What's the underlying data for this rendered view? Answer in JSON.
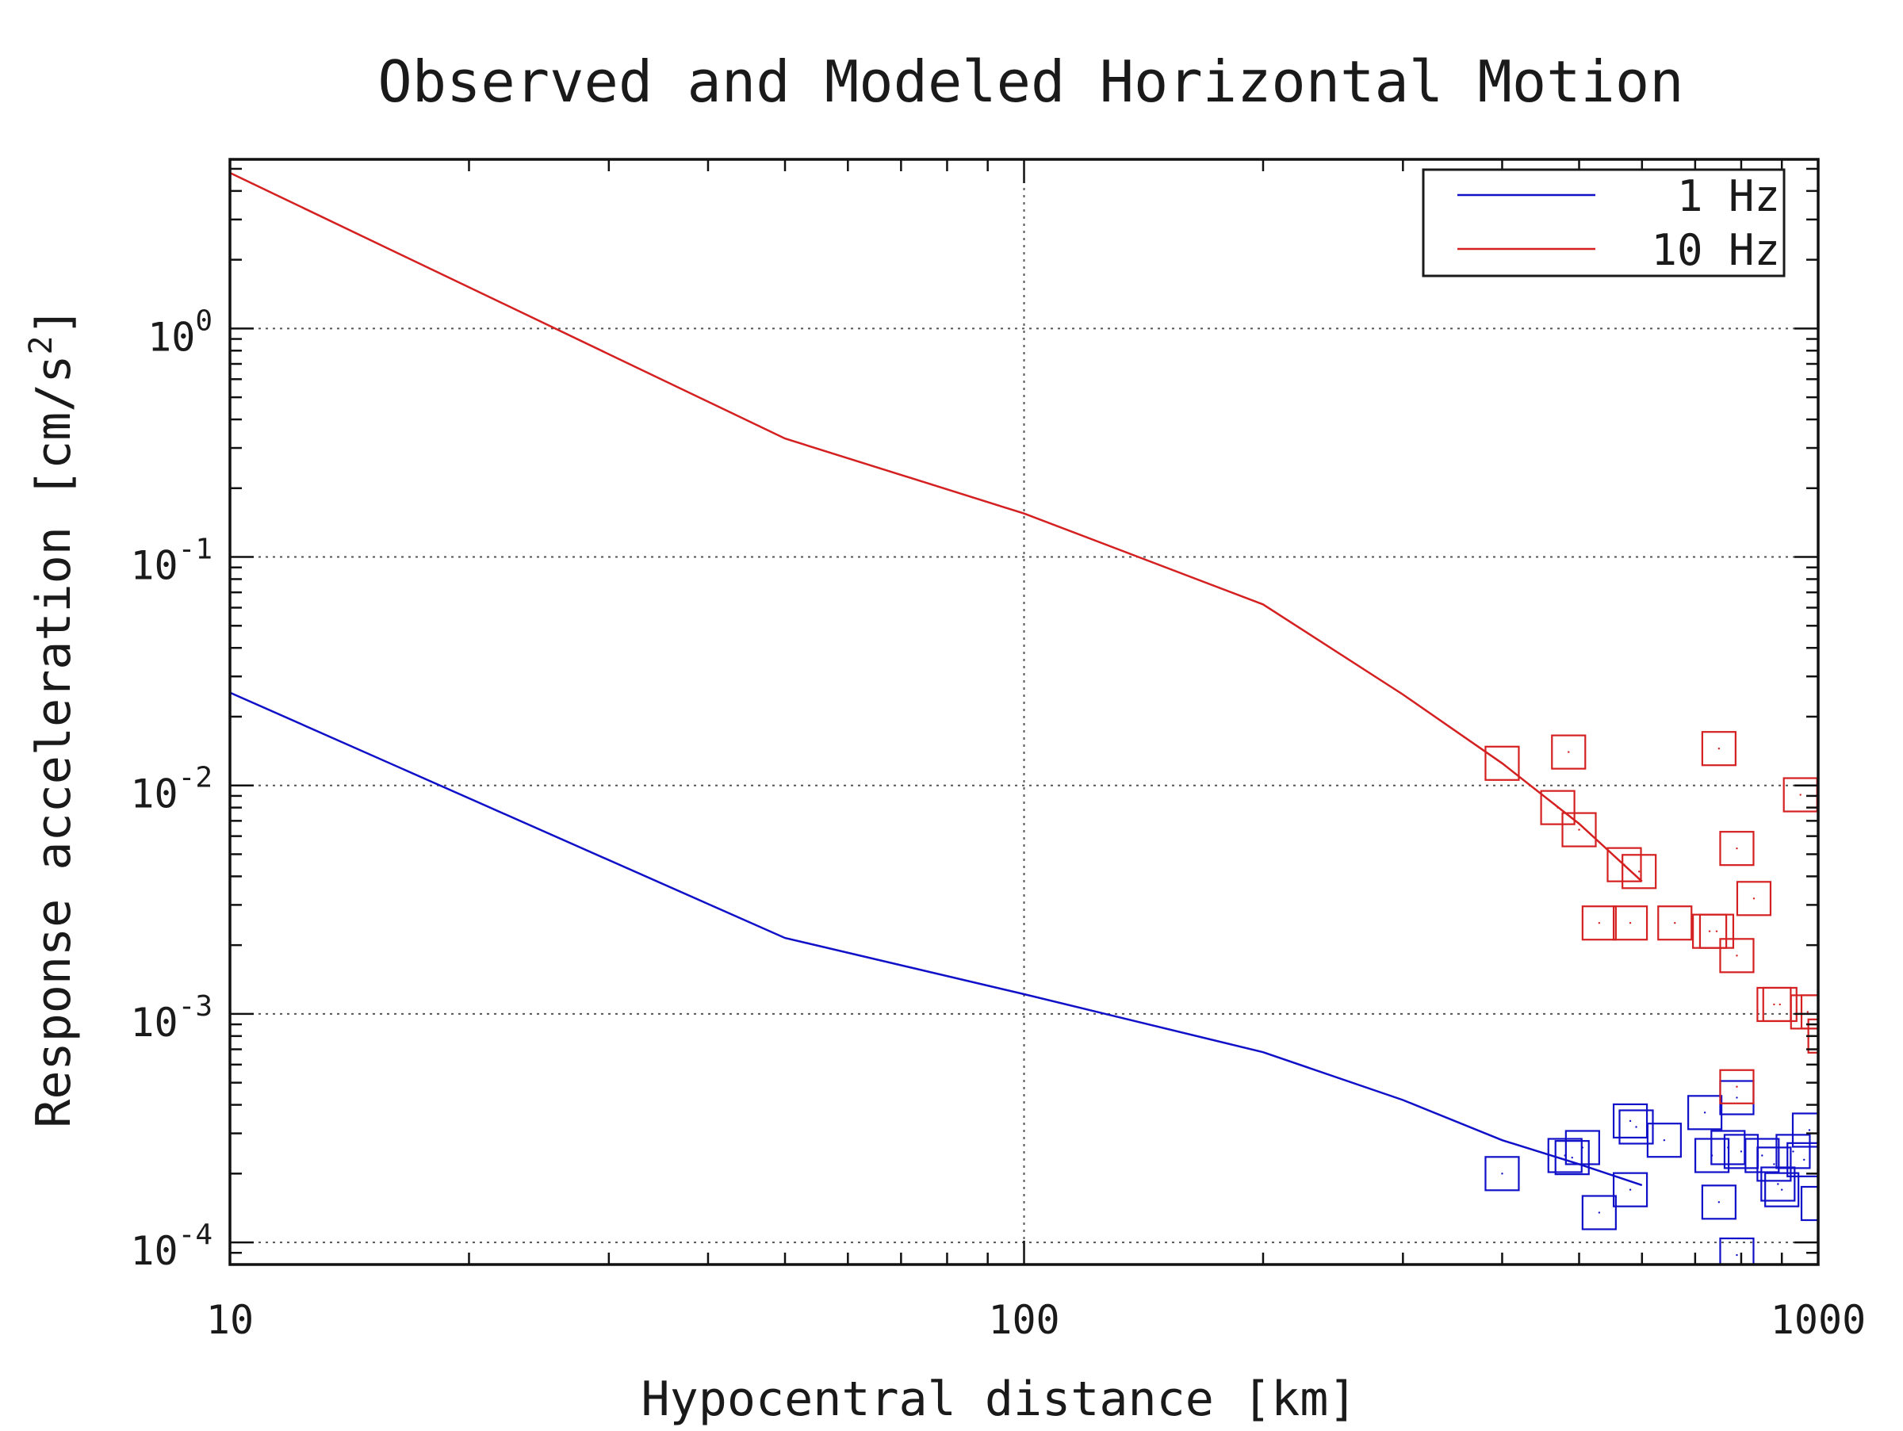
{
  "chart_data": {
    "type": "line",
    "title": "Observed and Modeled Horizontal Motion",
    "xlabel": "Hypocentral distance [km]",
    "ylabel_prefix": "Response acceleration [cm/s",
    "ylabel_sup": "2",
    "ylabel_suffix": "]",
    "xscale": "log",
    "yscale": "log",
    "xlim": [
      10,
      1000
    ],
    "ylim": [
      8e-05,
      5.5
    ],
    "grid": true,
    "legend_position": "top-right",
    "x_ticks": [
      {
        "value": 10,
        "label": "10"
      },
      {
        "value": 100,
        "label": "100"
      },
      {
        "value": 1000,
        "label": "1000"
      }
    ],
    "y_ticks": [
      {
        "value": 1,
        "base": "10",
        "exp": "0"
      },
      {
        "value": 0.1,
        "base": "10",
        "exp": "-1"
      },
      {
        "value": 0.01,
        "base": "10",
        "exp": "-2"
      },
      {
        "value": 0.001,
        "base": "10",
        "exp": "-3"
      },
      {
        "value": 0.0001,
        "base": "10",
        "exp": "-4"
      }
    ],
    "series": [
      {
        "name": "1 Hz",
        "color": "#1010c8",
        "model": [
          [
            10,
            0.0255
          ],
          [
            50,
            0.00215
          ],
          [
            100,
            0.00122
          ],
          [
            200,
            0.00068
          ],
          [
            300,
            0.00042
          ],
          [
            400,
            0.00028
          ],
          [
            500,
            0.00022
          ],
          [
            600,
            0.000178
          ]
        ],
        "observed": [
          [
            400,
            0.0002
          ],
          [
            480,
            0.00024
          ],
          [
            490,
            0.000235
          ],
          [
            505,
            0.00026
          ],
          [
            530,
            0.000135
          ],
          [
            580,
            0.00017
          ],
          [
            580,
            0.00034
          ],
          [
            590,
            0.00032
          ],
          [
            640,
            0.00028
          ],
          [
            720,
            0.00037
          ],
          [
            735,
            0.00024
          ],
          [
            750,
            0.00015
          ],
          [
            770,
            0.00026
          ],
          [
            790,
            8.8e-05
          ],
          [
            790,
            0.00043
          ],
          [
            800,
            0.00025
          ],
          [
            850,
            0.00024
          ],
          [
            880,
            0.00022
          ],
          [
            890,
            0.00018
          ],
          [
            900,
            0.00017
          ],
          [
            930,
            0.00025
          ],
          [
            960,
            0.00023
          ],
          [
            975,
            0.00031
          ],
          [
            1000,
            0.000148
          ]
        ]
      },
      {
        "name": "10 Hz",
        "color": "#d42020",
        "model": [
          [
            10,
            4.8
          ],
          [
            50,
            0.33
          ],
          [
            100,
            0.155
          ],
          [
            200,
            0.062
          ],
          [
            300,
            0.025
          ],
          [
            400,
            0.0125
          ],
          [
            500,
            0.0068
          ],
          [
            600,
            0.0038
          ]
        ],
        "observed": [
          [
            400,
            0.0125
          ],
          [
            470,
            0.008
          ],
          [
            485,
            0.014
          ],
          [
            500,
            0.0064
          ],
          [
            530,
            0.0025
          ],
          [
            570,
            0.0045
          ],
          [
            580,
            0.0025
          ],
          [
            595,
            0.0042
          ],
          [
            660,
            0.0025
          ],
          [
            730,
            0.0023
          ],
          [
            745,
            0.0023
          ],
          [
            750,
            0.0145
          ],
          [
            790,
            0.0053
          ],
          [
            790,
            0.0018
          ],
          [
            790,
            0.00048
          ],
          [
            830,
            0.0032
          ],
          [
            880,
            0.0011
          ],
          [
            895,
            0.0011
          ],
          [
            950,
            0.0091
          ],
          [
            970,
            0.00102
          ],
          [
            1000,
            0.00102
          ],
          [
            1020,
            0.0008
          ]
        ]
      }
    ]
  }
}
